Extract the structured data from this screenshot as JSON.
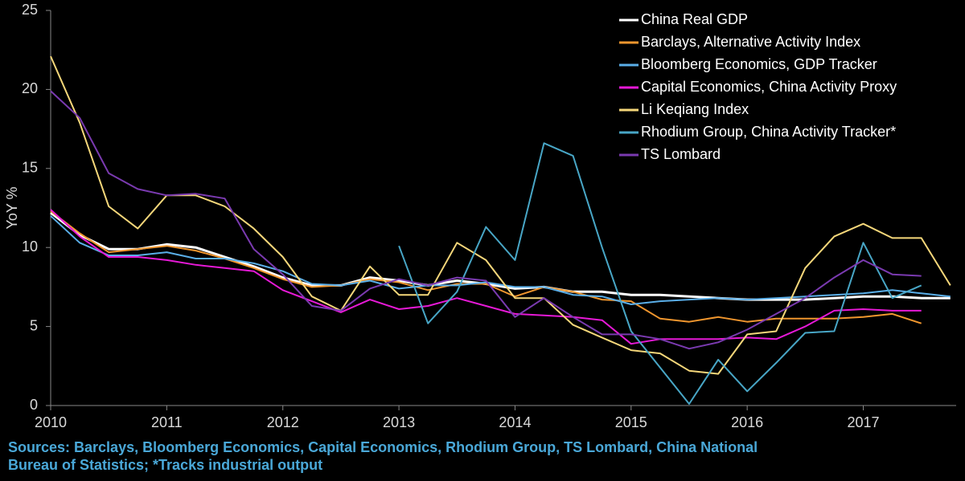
{
  "chart_data": {
    "type": "line",
    "y_label": "YoY %",
    "x": [
      2010,
      2010.25,
      2010.5,
      2010.75,
      2011,
      2011.25,
      2011.5,
      2011.75,
      2012,
      2012.25,
      2012.5,
      2012.75,
      2013,
      2013.25,
      2013.5,
      2013.75,
      2014,
      2014.25,
      2014.5,
      2014.75,
      2015,
      2015.25,
      2015.5,
      2015.75,
      2016,
      2016.25,
      2016.5,
      2016.75,
      2017,
      2017.25,
      2017.5,
      2017.75
    ],
    "xlim": [
      2010,
      2017.8
    ],
    "xticks": [
      2010,
      2011,
      2012,
      2013,
      2014,
      2015,
      2016,
      2017
    ],
    "ylim": [
      0,
      25
    ],
    "yticks": [
      0,
      5,
      10,
      15,
      20,
      25
    ],
    "legend": "upper right",
    "series": [
      {
        "name": "China Real GDP",
        "color": "#ffffff",
        "values": [
          12.2,
          10.8,
          9.9,
          9.9,
          10.2,
          10.0,
          9.4,
          8.8,
          8.1,
          7.6,
          7.6,
          8.1,
          7.9,
          7.6,
          7.9,
          7.7,
          7.4,
          7.5,
          7.2,
          7.2,
          7.0,
          7.0,
          6.9,
          6.8,
          6.7,
          6.7,
          6.7,
          6.8,
          6.9,
          6.9,
          6.8,
          6.8
        ]
      },
      {
        "name": "Barclays, Alternative Activity Index",
        "color": "#f0962e",
        "values": [
          12.3,
          10.9,
          9.7,
          9.9,
          10.1,
          9.8,
          9.3,
          8.7,
          8.0,
          7.5,
          7.6,
          8.0,
          7.8,
          7.3,
          7.7,
          7.7,
          6.9,
          7.5,
          7.2,
          6.7,
          6.6,
          5.5,
          5.3,
          5.6,
          5.3,
          5.5,
          5.5,
          5.5,
          5.6,
          5.8,
          5.2,
          null
        ]
      },
      {
        "name": "Bloomberg Economics, GDP Tracker",
        "color": "#5aaee8",
        "values": [
          12.0,
          10.3,
          9.5,
          9.5,
          9.7,
          9.3,
          9.3,
          9.0,
          8.5,
          7.7,
          7.6,
          7.9,
          7.4,
          7.6,
          7.6,
          7.8,
          7.5,
          7.5,
          7.0,
          6.9,
          6.4,
          6.6,
          6.7,
          6.8,
          6.7,
          6.8,
          6.9,
          7.0,
          7.1,
          7.3,
          7.1,
          6.9
        ]
      },
      {
        "name": "Capital Economics, China Activity Proxy",
        "color": "#e619d6",
        "values": [
          12.4,
          10.7,
          9.4,
          9.4,
          9.2,
          8.9,
          8.7,
          8.5,
          7.3,
          6.6,
          5.9,
          6.7,
          6.1,
          6.3,
          6.8,
          6.3,
          5.8,
          5.7,
          5.6,
          5.4,
          3.9,
          4.2,
          4.2,
          4.2,
          4.3,
          4.2,
          5.0,
          6.0,
          6.1,
          6.0,
          6.0,
          null
        ]
      },
      {
        "name": "Li Keqiang Index",
        "color": "#f5d77a",
        "values": [
          22.1,
          17.9,
          12.6,
          11.2,
          13.3,
          13.3,
          12.6,
          11.2,
          9.4,
          6.9,
          6.0,
          8.8,
          7.0,
          7.0,
          10.3,
          9.2,
          6.8,
          6.8,
          5.1,
          4.3,
          3.5,
          3.3,
          2.2,
          2.0,
          4.5,
          4.7,
          8.7,
          10.7,
          11.5,
          10.6,
          10.6,
          7.6
        ]
      },
      {
        "name": "Rhodium Group, China Activity Tracker*",
        "color": "#48a6c6",
        "values": [
          null,
          null,
          null,
          null,
          null,
          null,
          null,
          null,
          null,
          null,
          null,
          null,
          10.1,
          5.2,
          7.2,
          11.3,
          9.2,
          16.6,
          15.8,
          10.0,
          4.7,
          2.4,
          0.1,
          2.9,
          0.9,
          2.7,
          4.6,
          4.7,
          10.3,
          6.8,
          7.6,
          null
        ]
      },
      {
        "name": "TS Lombard",
        "color": "#7a3ab0",
        "values": [
          19.9,
          18.2,
          14.7,
          13.7,
          13.3,
          13.4,
          13.1,
          9.9,
          8.3,
          6.3,
          6.0,
          7.4,
          8.0,
          7.6,
          8.1,
          7.9,
          5.6,
          6.8,
          5.6,
          4.5,
          4.5,
          4.2,
          3.6,
          4.0,
          4.8,
          5.8,
          6.8,
          8.1,
          9.2,
          8.3,
          8.2,
          null
        ]
      }
    ],
    "source": [
      "Sources: Barclays, Bloomberg Economics, Capital Economics, Rhodium Group, TS Lombard, China National",
      "Bureau of Statistics; *Tracks industrial output"
    ]
  }
}
